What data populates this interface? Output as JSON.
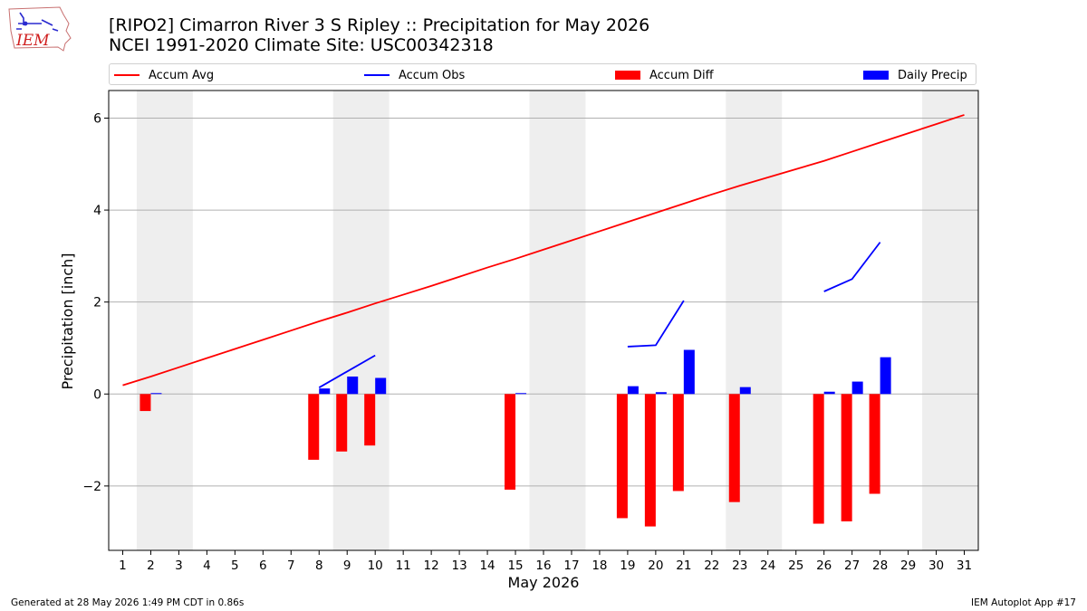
{
  "header": {
    "logo_text": "IEM",
    "title_line1": "[RIPO2] Cimarron River 3 S Ripley :: Precipitation for May 2026",
    "title_line2": "NCEI 1991-2020 Climate Site: USC00342318"
  },
  "legend": {
    "items": [
      {
        "label": "Accum Avg",
        "kind": "line",
        "color": "#ff0000"
      },
      {
        "label": "Accum Obs",
        "kind": "line",
        "color": "#0000ff"
      },
      {
        "label": "Accum Diff",
        "kind": "box",
        "color": "#ff0000"
      },
      {
        "label": "Daily Precip",
        "kind": "box",
        "color": "#0000ff"
      }
    ]
  },
  "chart_data": {
    "type": "bar",
    "xlabel": "May 2026",
    "ylabel": "Precipitation [inch]",
    "x": [
      1,
      2,
      3,
      4,
      5,
      6,
      7,
      8,
      9,
      10,
      11,
      12,
      13,
      14,
      15,
      16,
      17,
      18,
      19,
      20,
      21,
      22,
      23,
      24,
      25,
      26,
      27,
      28,
      29,
      30,
      31
    ],
    "xlim": [
      0.5,
      31.5
    ],
    "ylim": [
      -3.4,
      6.6
    ],
    "yticks": [
      6,
      4,
      2,
      0,
      -2
    ],
    "ytick_labels": [
      "6",
      "4",
      "2",
      "0",
      "−2"
    ],
    "grid": "horizontal",
    "weekend_shading": [
      [
        1.5,
        3.5
      ],
      [
        8.5,
        10.5
      ],
      [
        15.5,
        17.5
      ],
      [
        22.5,
        24.5
      ],
      [
        29.5,
        31.5
      ]
    ],
    "weekend_color": "#eeeeee",
    "series": [
      {
        "name": "Accum Avg",
        "type": "line",
        "color": "#ff0000",
        "values": [
          0.19,
          0.38,
          0.58,
          0.78,
          0.98,
          1.18,
          1.38,
          1.58,
          1.77,
          1.97,
          2.16,
          2.35,
          2.55,
          2.75,
          2.94,
          3.14,
          3.34,
          3.54,
          3.74,
          3.94,
          4.14,
          4.34,
          4.53,
          4.71,
          4.89,
          5.07,
          5.27,
          5.47,
          5.67,
          5.87,
          6.07
        ]
      },
      {
        "name": "Accum Obs",
        "type": "line",
        "color": "#0000ff",
        "segments": [
          {
            "x": [
              8,
              10
            ],
            "y": [
              0.14,
              0.84
            ]
          },
          {
            "x": [
              19,
              20,
              21
            ],
            "y": [
              1.03,
              1.06,
              2.03
            ]
          },
          {
            "x": [
              26,
              27,
              28
            ],
            "y": [
              2.23,
              2.5,
              3.3
            ]
          }
        ]
      },
      {
        "name": "Accum Diff",
        "type": "bar",
        "color": "#ff0000",
        "points": [
          [
            2,
            -0.37
          ],
          [
            8,
            -1.43
          ],
          [
            9,
            -1.25
          ],
          [
            10,
            -1.12
          ],
          [
            15,
            -2.08
          ],
          [
            19,
            -2.7
          ],
          [
            20,
            -2.88
          ],
          [
            21,
            -2.11
          ],
          [
            23,
            -2.35
          ],
          [
            26,
            -2.82
          ],
          [
            27,
            -2.77
          ],
          [
            28,
            -2.17
          ]
        ]
      },
      {
        "name": "Daily Precip",
        "type": "bar",
        "color": "#0000ff",
        "points": [
          [
            2,
            0.02
          ],
          [
            8,
            0.12
          ],
          [
            9,
            0.38
          ],
          [
            10,
            0.35
          ],
          [
            15,
            0.02
          ],
          [
            19,
            0.17
          ],
          [
            20,
            0.04
          ],
          [
            21,
            0.96
          ],
          [
            23,
            0.15
          ],
          [
            26,
            0.05
          ],
          [
            27,
            0.27
          ],
          [
            28,
            0.8
          ]
        ]
      }
    ]
  },
  "footer": {
    "left": "Generated at 28 May 2026 1:49 PM CDT in 0.86s",
    "right": "IEM Autoplot App #17"
  }
}
